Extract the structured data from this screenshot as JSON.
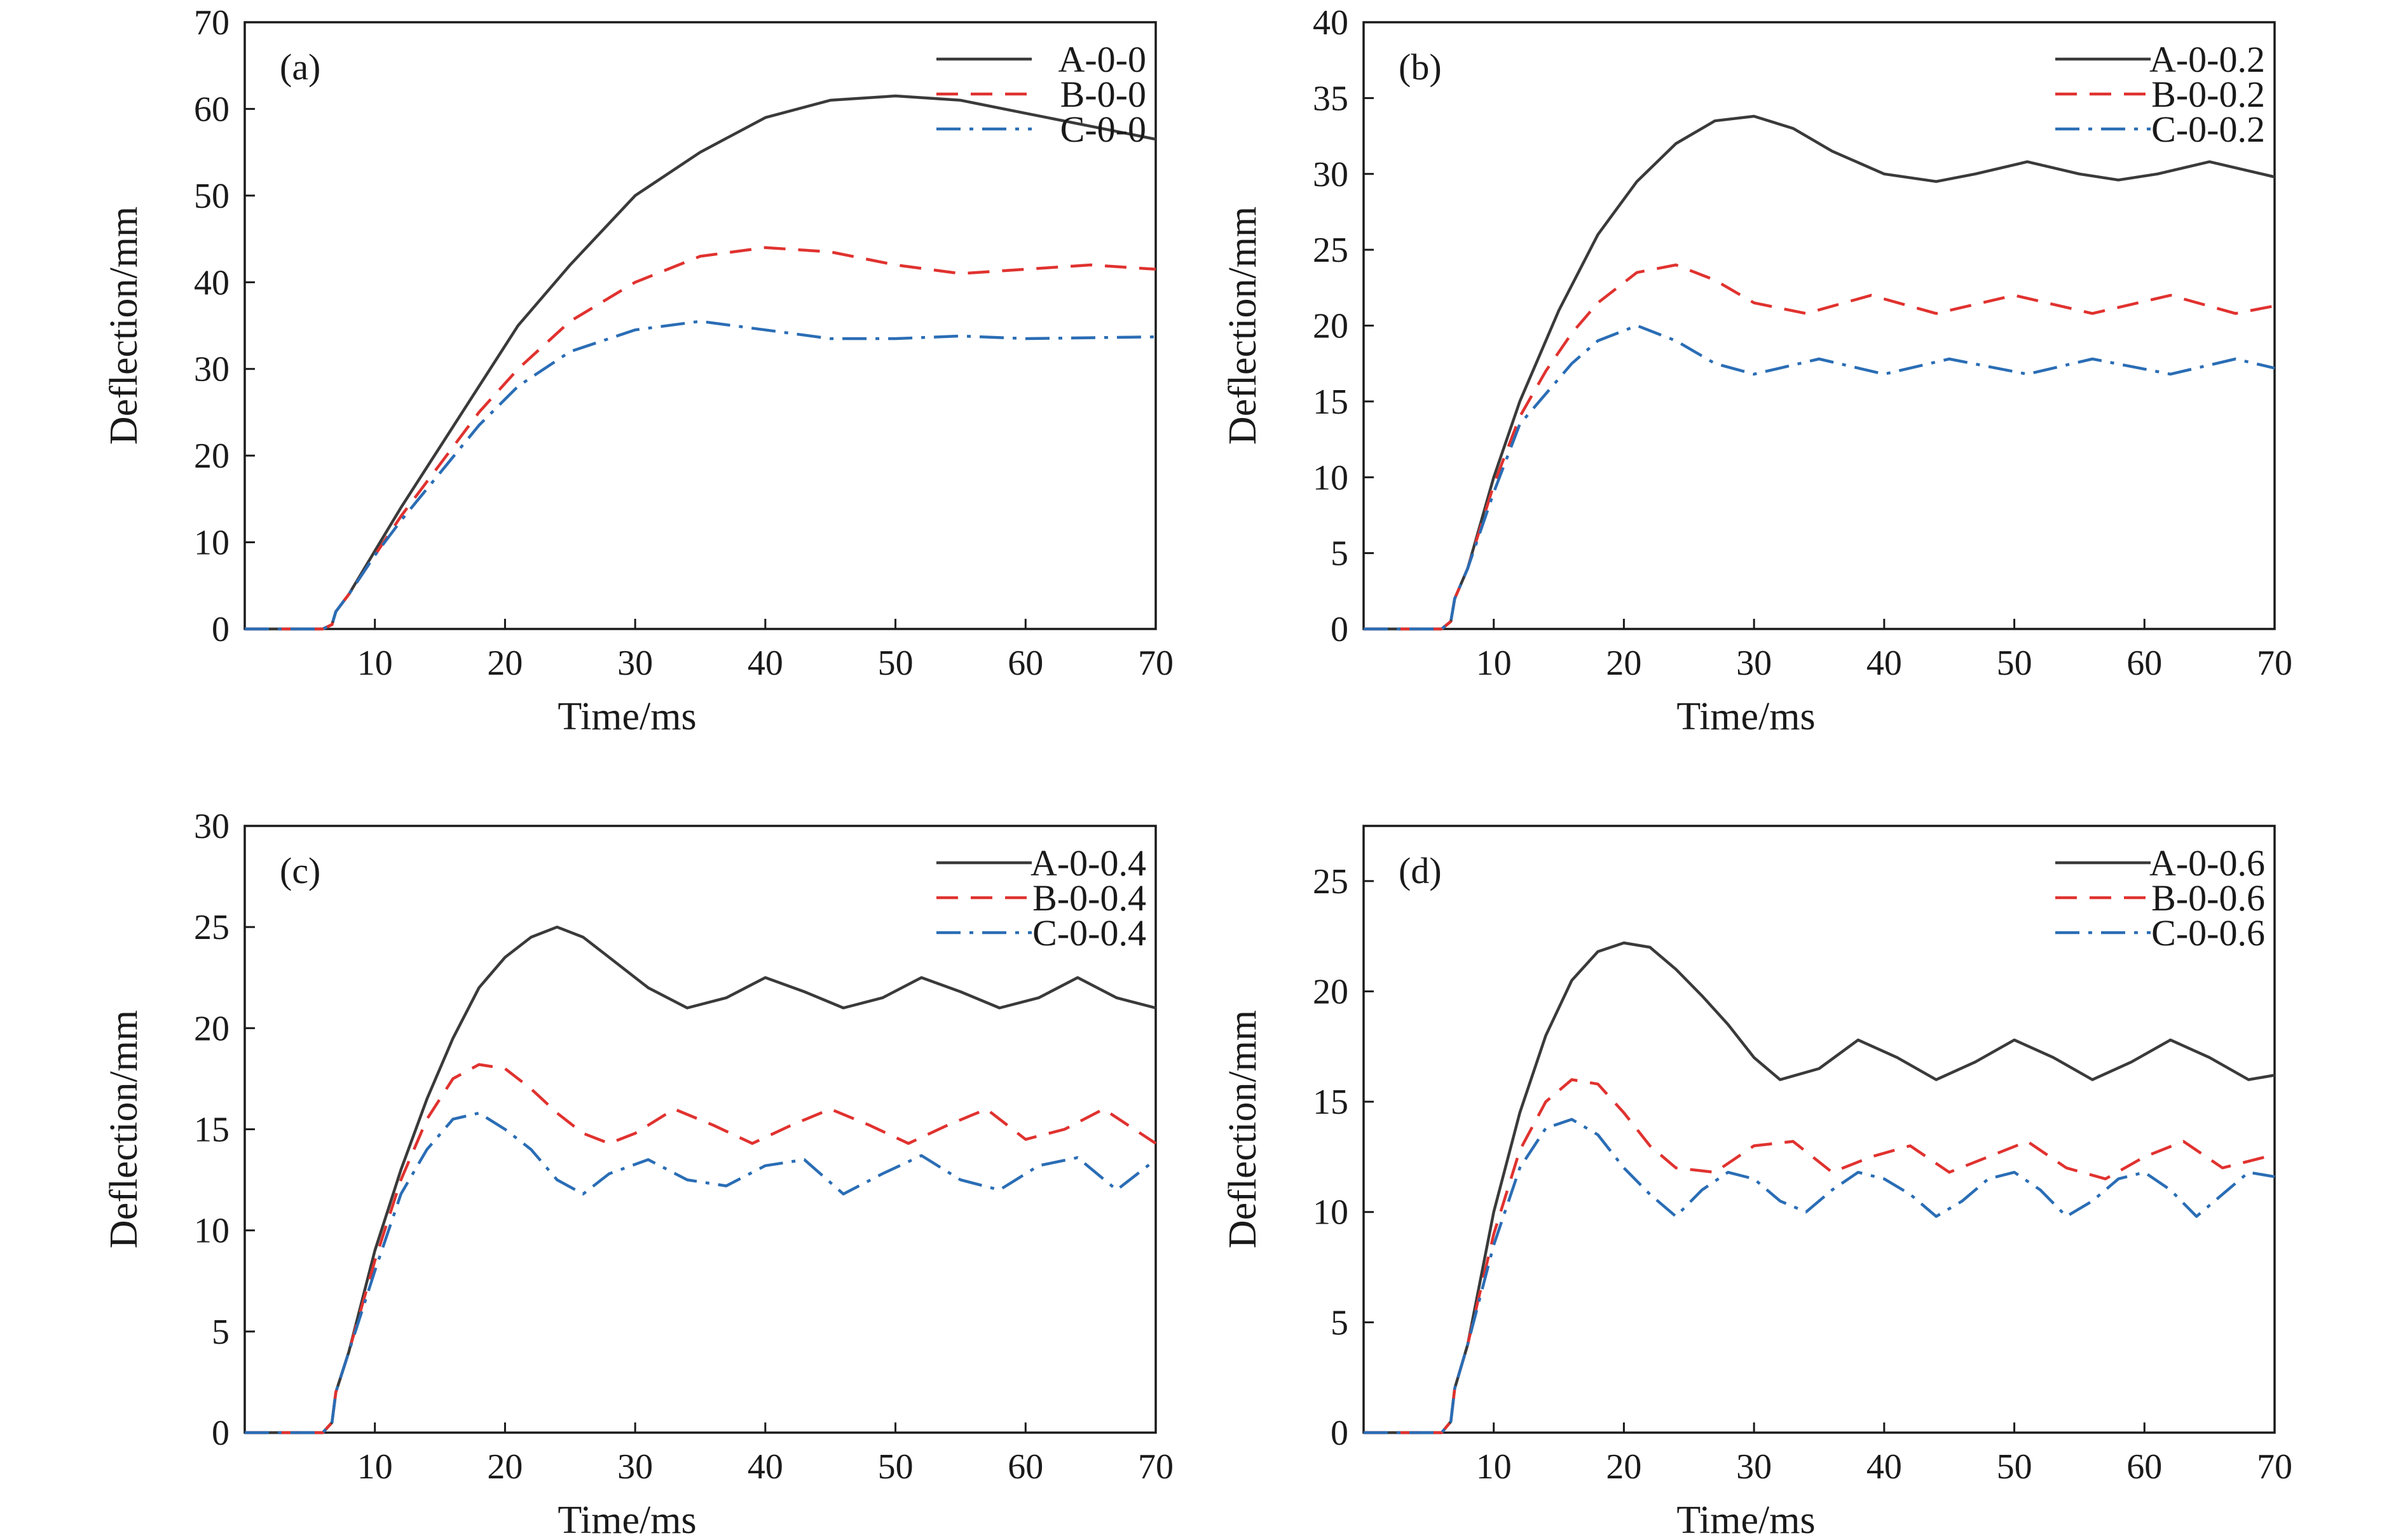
{
  "figure": {
    "background": "#ffffff",
    "axis_color": "#1a1a1a"
  },
  "chart_data": [
    {
      "type": "line",
      "panel_label": "(a)",
      "xlabel": "Time/ms",
      "ylabel": "Deflection/mm",
      "xlim": [
        0,
        70
      ],
      "ylim": [
        0,
        70
      ],
      "xticks": [
        10,
        20,
        30,
        40,
        50,
        60,
        70
      ],
      "yticks": [
        0,
        10,
        20,
        30,
        40,
        50,
        60,
        70
      ],
      "grid": false,
      "legend_position": "top-right",
      "series": [
        {
          "name": "A-0-0",
          "color": "#3a3a3a",
          "dash": "solid",
          "x": [
            0,
            6,
            6.7,
            7,
            8,
            10,
            12,
            15,
            18,
            21,
            25,
            30,
            35,
            40,
            45,
            50,
            55,
            60,
            65,
            70
          ],
          "y": [
            0,
            0,
            0.5,
            2,
            4,
            9,
            14,
            21,
            28,
            35,
            42,
            50,
            55,
            59,
            61,
            61.5,
            61,
            59.5,
            58,
            56.5
          ]
        },
        {
          "name": "B-0-0",
          "color": "#e0322f",
          "dash": "dashed",
          "x": [
            0,
            6,
            6.7,
            7,
            8,
            10,
            12,
            15,
            18,
            21,
            25,
            30,
            35,
            40,
            45,
            50,
            55,
            60,
            65,
            70
          ],
          "y": [
            0,
            0,
            0.5,
            2,
            4,
            8.5,
            13,
            19,
            25,
            30,
            35.5,
            40,
            43,
            44,
            43.5,
            42,
            41,
            41.5,
            42,
            41.5
          ]
        },
        {
          "name": "C-0-0",
          "color": "#2a6db5",
          "dash": "dashdot",
          "x": [
            0,
            6,
            6.7,
            7,
            8,
            10,
            12,
            15,
            18,
            21,
            25,
            30,
            35,
            40,
            45,
            50,
            55,
            60,
            65,
            70
          ],
          "y": [
            0,
            0,
            0.5,
            2,
            4,
            8.5,
            12.5,
            18,
            23.5,
            28,
            32,
            34.5,
            35.5,
            34.5,
            33.5,
            33.5,
            33.8,
            33.5,
            33.6,
            33.7
          ]
        }
      ]
    },
    {
      "type": "line",
      "panel_label": "(b)",
      "xlabel": "Time/ms",
      "ylabel": "Deflection/mm",
      "xlim": [
        0,
        70
      ],
      "ylim": [
        0,
        40
      ],
      "xticks": [
        10,
        20,
        30,
        40,
        50,
        60,
        70
      ],
      "yticks": [
        0,
        5,
        10,
        15,
        20,
        25,
        30,
        35,
        40
      ],
      "grid": false,
      "legend_position": "top-right",
      "series": [
        {
          "name": "A-0-0.2",
          "color": "#3a3a3a",
          "dash": "solid",
          "x": [
            0,
            6,
            6.7,
            7,
            8,
            10,
            12,
            15,
            18,
            21,
            24,
            27,
            30,
            33,
            36,
            40,
            44,
            47,
            51,
            55,
            58,
            61,
            65,
            70
          ],
          "y": [
            0,
            0,
            0.5,
            2,
            4,
            10,
            15,
            21,
            26,
            29.5,
            32,
            33.5,
            33.8,
            33,
            31.5,
            30,
            29.5,
            30,
            30.8,
            30,
            29.6,
            30,
            30.8,
            29.8
          ]
        },
        {
          "name": "B-0-0.2",
          "color": "#e0322f",
          "dash": "dashed",
          "x": [
            0,
            6,
            6.7,
            7,
            8,
            10,
            12,
            14,
            16,
            18,
            21,
            24,
            27,
            30,
            34,
            39,
            44,
            50,
            56,
            62,
            67,
            70
          ],
          "y": [
            0,
            0,
            0.5,
            2,
            4,
            9.5,
            14,
            17,
            19.5,
            21.5,
            23.5,
            24,
            23,
            21.5,
            20.8,
            22,
            20.8,
            22,
            20.8,
            22,
            20.8,
            21.3
          ]
        },
        {
          "name": "C-0-0.2",
          "color": "#2a6db5",
          "dash": "dashdot",
          "x": [
            0,
            6,
            6.7,
            7,
            8,
            10,
            12,
            14,
            16,
            18,
            21,
            24,
            27,
            30,
            35,
            40,
            45,
            51,
            56,
            62,
            67,
            70
          ],
          "y": [
            0,
            0,
            0.5,
            2,
            4,
            9,
            13.5,
            15.5,
            17.5,
            19,
            20,
            19,
            17.5,
            16.8,
            17.8,
            16.8,
            17.8,
            16.8,
            17.8,
            16.8,
            17.8,
            17.2
          ]
        }
      ]
    },
    {
      "type": "line",
      "panel_label": "(c)",
      "xlabel": "Time/ms",
      "ylabel": "Deflection/mm",
      "xlim": [
        0,
        70
      ],
      "ylim": [
        0,
        30
      ],
      "xticks": [
        10,
        20,
        30,
        40,
        50,
        60,
        70
      ],
      "yticks": [
        0,
        5,
        10,
        15,
        20,
        25,
        30
      ],
      "grid": false,
      "legend_position": "top-right",
      "series": [
        {
          "name": "A-0-0.4",
          "color": "#3a3a3a",
          "dash": "solid",
          "x": [
            0,
            6,
            6.7,
            7,
            8,
            10,
            12,
            14,
            16,
            18,
            20,
            22,
            24,
            26,
            28,
            31,
            34,
            37,
            40,
            43,
            46,
            49,
            52,
            55,
            58,
            61,
            64,
            67,
            70
          ],
          "y": [
            0,
            0,
            0.5,
            2,
            4,
            9,
            13,
            16.5,
            19.5,
            22,
            23.5,
            24.5,
            25,
            24.5,
            23.5,
            22,
            21,
            21.5,
            22.5,
            21.8,
            21,
            21.5,
            22.5,
            21.8,
            21,
            21.5,
            22.5,
            21.5,
            21
          ]
        },
        {
          "name": "B-0-0.4",
          "color": "#e0322f",
          "dash": "dashed",
          "x": [
            0,
            6,
            6.7,
            7,
            8,
            10,
            12,
            14,
            16,
            18,
            20,
            22,
            24,
            26,
            28,
            30,
            33,
            36,
            39,
            42,
            45,
            48,
            51,
            54,
            57,
            60,
            63,
            66,
            70
          ],
          "y": [
            0,
            0,
            0.5,
            2,
            4,
            8.5,
            12.5,
            15.5,
            17.5,
            18.2,
            18,
            17,
            15.8,
            14.8,
            14.3,
            14.8,
            16,
            15.2,
            14.3,
            15.2,
            16,
            15.2,
            14.3,
            15.2,
            16,
            14.5,
            15,
            16,
            14.3
          ]
        },
        {
          "name": "C-0-0.4",
          "color": "#2a6db5",
          "dash": "dashdot",
          "x": [
            0,
            6,
            6.7,
            7,
            8,
            10,
            12,
            14,
            16,
            18,
            20,
            22,
            24,
            26,
            28,
            31,
            34,
            37,
            40,
            43,
            46,
            49,
            52,
            55,
            58,
            61,
            64,
            67,
            70
          ],
          "y": [
            0,
            0,
            0.5,
            2,
            4,
            8,
            11.8,
            14,
            15.5,
            15.8,
            15,
            14,
            12.5,
            11.8,
            12.8,
            13.5,
            12.5,
            12.2,
            13.2,
            13.5,
            11.8,
            12.8,
            13.7,
            12.5,
            12,
            13.2,
            13.6,
            12,
            13.5
          ]
        }
      ]
    },
    {
      "type": "line",
      "panel_label": "(d)",
      "xlabel": "Time/ms",
      "ylabel": "Deflection/mm",
      "xlim": [
        0,
        70
      ],
      "ylim": [
        0,
        27.5
      ],
      "xticks": [
        10,
        20,
        30,
        40,
        50,
        60,
        70
      ],
      "yticks": [
        0,
        5,
        10,
        15,
        20,
        25
      ],
      "grid": false,
      "legend_position": "top-right",
      "series": [
        {
          "name": "A-0-0.6",
          "color": "#3a3a3a",
          "dash": "solid",
          "x": [
            0,
            6,
            6.7,
            7,
            8,
            10,
            12,
            14,
            16,
            18,
            20,
            22,
            24,
            26,
            28,
            30,
            32,
            35,
            38,
            41,
            44,
            47,
            50,
            53,
            56,
            59,
            62,
            65,
            68,
            70
          ],
          "y": [
            0,
            0,
            0.5,
            2,
            4,
            10,
            14.5,
            18,
            20.5,
            21.8,
            22.2,
            22,
            21,
            19.8,
            18.5,
            17,
            16,
            16.5,
            17.8,
            17,
            16,
            16.8,
            17.8,
            17,
            16,
            16.8,
            17.8,
            17,
            16,
            16.2
          ]
        },
        {
          "name": "B-0-0.6",
          "color": "#e0322f",
          "dash": "dashed",
          "x": [
            0,
            6,
            6.7,
            7,
            8,
            10,
            12,
            14,
            16,
            18,
            20,
            22,
            24,
            27,
            30,
            33,
            36,
            39,
            42,
            45,
            48,
            51,
            54,
            57,
            60,
            63,
            66,
            70
          ],
          "y": [
            0,
            0,
            0.5,
            2,
            4,
            9,
            12.8,
            15,
            16,
            15.8,
            14.5,
            13,
            12,
            11.8,
            13,
            13.2,
            11.8,
            12.5,
            13,
            11.8,
            12.5,
            13.2,
            12,
            11.5,
            12.5,
            13.2,
            12,
            12.6
          ]
        },
        {
          "name": "C-0-0.6",
          "color": "#2a6db5",
          "dash": "dashdot",
          "x": [
            0,
            6,
            6.7,
            7,
            8,
            10,
            12,
            14,
            16,
            18,
            20,
            22,
            24,
            26,
            28,
            30,
            32,
            34,
            36,
            38,
            40,
            42,
            44,
            46,
            48,
            50,
            52,
            54,
            56,
            58,
            60,
            62,
            64,
            66,
            68,
            70
          ],
          "y": [
            0,
            0,
            0.5,
            2,
            4,
            8.5,
            12,
            13.8,
            14.2,
            13.5,
            12,
            10.8,
            9.8,
            11,
            11.8,
            11.5,
            10.5,
            10,
            11,
            11.8,
            11.5,
            10.8,
            9.8,
            10.5,
            11.5,
            11.8,
            11,
            9.8,
            10.5,
            11.5,
            11.8,
            11,
            9.8,
            10.8,
            11.8,
            11.6
          ]
        }
      ]
    }
  ]
}
